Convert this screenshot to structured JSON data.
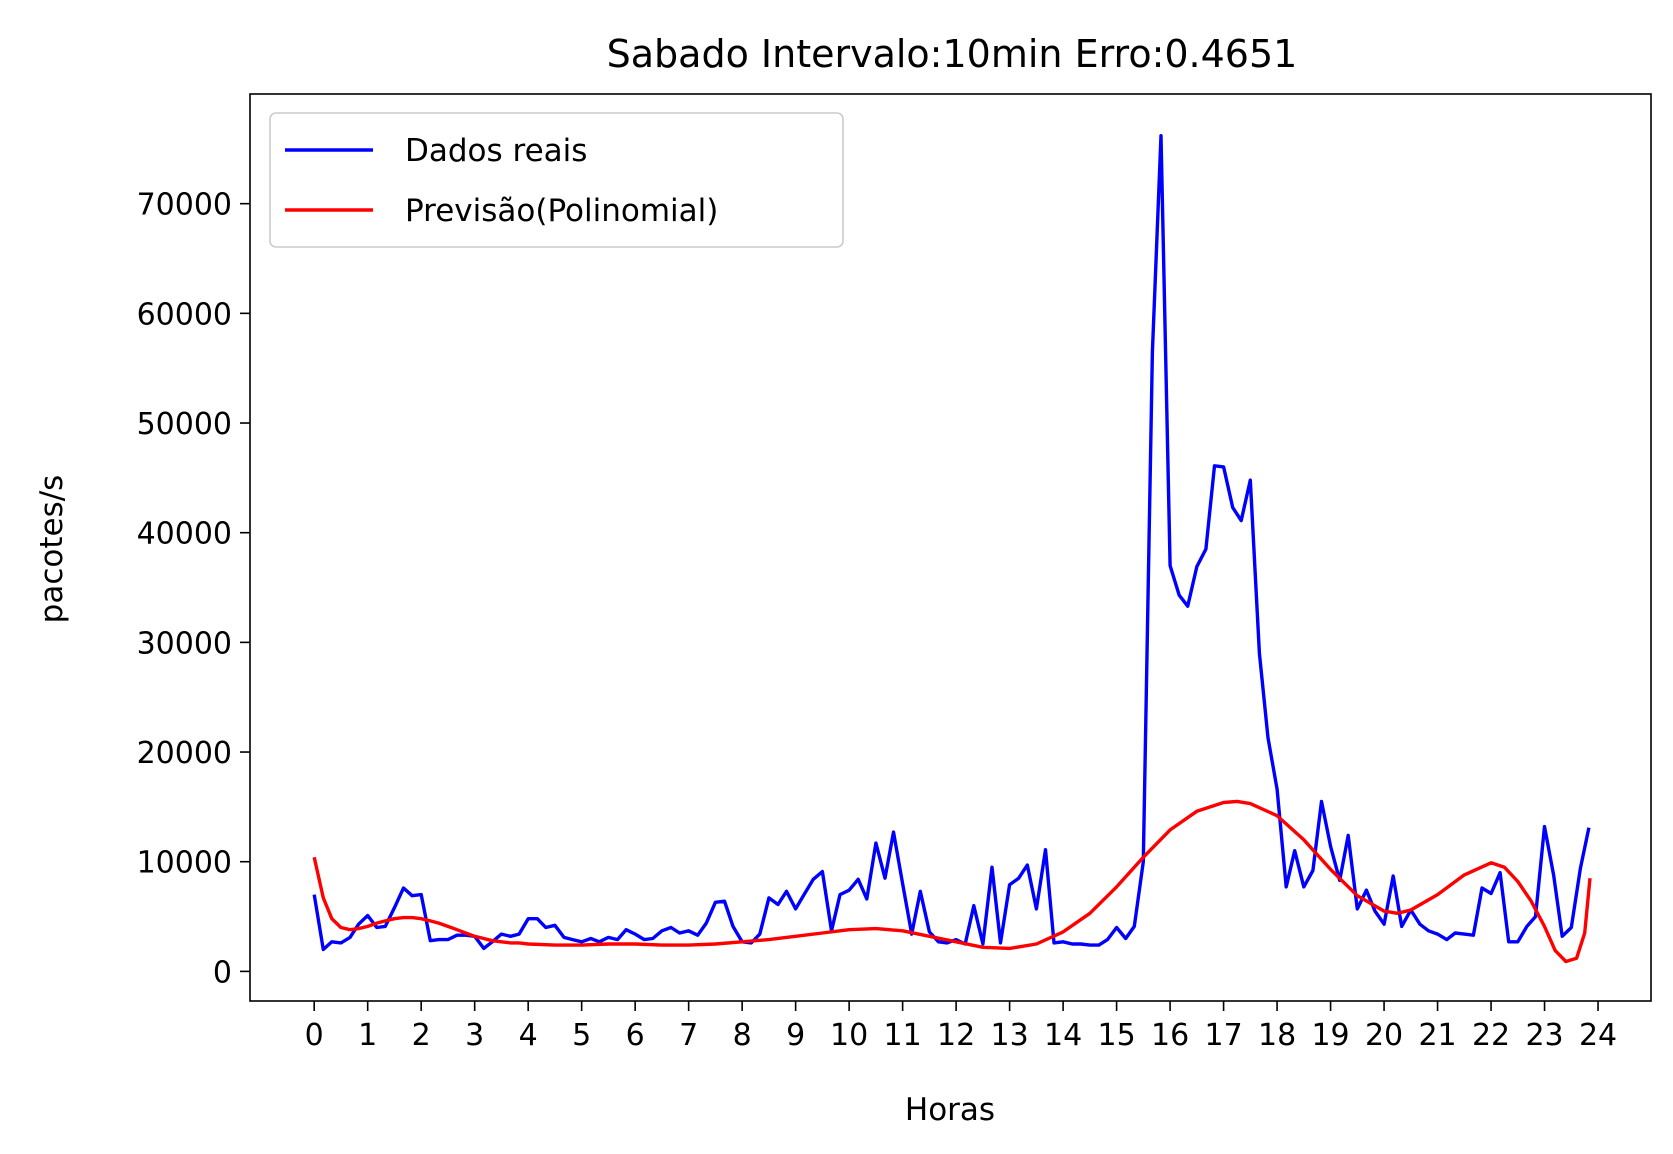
{
  "chart_data": {
    "type": "line",
    "title": "Sabado Intervalo:10min Erro:0.4651",
    "xlabel": "Horas",
    "ylabel": "pacotes/s",
    "xlim": [
      -1.2,
      24.99
    ],
    "ylim": [
      -2700,
      80000
    ],
    "xticks": [
      0,
      1,
      2,
      3,
      4,
      5,
      6,
      7,
      8,
      9,
      10,
      11,
      12,
      13,
      14,
      15,
      16,
      17,
      18,
      19,
      20,
      21,
      22,
      23,
      24
    ],
    "yticks": [
      0,
      10000,
      20000,
      30000,
      40000,
      50000,
      60000,
      70000
    ],
    "grid": false,
    "legend_position": "top-left",
    "colors": {
      "real": "#0000ff",
      "prediction": "#ff0000"
    },
    "series": [
      {
        "name": "Dados reais",
        "color": "#0000ff",
        "points": [
          [
            0.0,
            7000
          ],
          [
            0.17,
            2000
          ],
          [
            0.33,
            2700
          ],
          [
            0.5,
            2600
          ],
          [
            0.67,
            3100
          ],
          [
            0.83,
            4300
          ],
          [
            1.0,
            5100
          ],
          [
            1.17,
            4000
          ],
          [
            1.33,
            4100
          ],
          [
            1.5,
            5800
          ],
          [
            1.67,
            7600
          ],
          [
            1.83,
            6900
          ],
          [
            2.0,
            7000
          ],
          [
            2.17,
            2800
          ],
          [
            2.33,
            2900
          ],
          [
            2.5,
            2900
          ],
          [
            2.67,
            3300
          ],
          [
            2.83,
            3300
          ],
          [
            3.0,
            3200
          ],
          [
            3.17,
            2100
          ],
          [
            3.33,
            2700
          ],
          [
            3.5,
            3400
          ],
          [
            3.67,
            3200
          ],
          [
            3.83,
            3400
          ],
          [
            4.0,
            4800
          ],
          [
            4.17,
            4800
          ],
          [
            4.33,
            4000
          ],
          [
            4.5,
            4200
          ],
          [
            4.67,
            3100
          ],
          [
            4.83,
            2900
          ],
          [
            5.0,
            2700
          ],
          [
            5.17,
            3000
          ],
          [
            5.33,
            2700
          ],
          [
            5.5,
            3100
          ],
          [
            5.67,
            2900
          ],
          [
            5.83,
            3800
          ],
          [
            6.0,
            3400
          ],
          [
            6.17,
            2900
          ],
          [
            6.33,
            3000
          ],
          [
            6.5,
            3700
          ],
          [
            6.67,
            4000
          ],
          [
            6.83,
            3500
          ],
          [
            7.0,
            3700
          ],
          [
            7.17,
            3300
          ],
          [
            7.33,
            4400
          ],
          [
            7.5,
            6300
          ],
          [
            7.67,
            6400
          ],
          [
            7.83,
            4100
          ],
          [
            8.0,
            2700
          ],
          [
            8.17,
            2600
          ],
          [
            8.33,
            3400
          ],
          [
            8.5,
            6700
          ],
          [
            8.67,
            6100
          ],
          [
            8.83,
            7300
          ],
          [
            9.0,
            5700
          ],
          [
            9.17,
            7100
          ],
          [
            9.33,
            8400
          ],
          [
            9.5,
            9100
          ],
          [
            9.67,
            3700
          ],
          [
            9.83,
            7000
          ],
          [
            10.0,
            7400
          ],
          [
            10.17,
            8400
          ],
          [
            10.33,
            6600
          ],
          [
            10.5,
            11700
          ],
          [
            10.67,
            8500
          ],
          [
            10.83,
            12700
          ],
          [
            11.0,
            8000
          ],
          [
            11.17,
            3400
          ],
          [
            11.33,
            7300
          ],
          [
            11.5,
            3600
          ],
          [
            11.67,
            2700
          ],
          [
            11.83,
            2600
          ],
          [
            12.0,
            2900
          ],
          [
            12.17,
            2500
          ],
          [
            12.33,
            6000
          ],
          [
            12.5,
            2500
          ],
          [
            12.67,
            9500
          ],
          [
            12.83,
            2600
          ],
          [
            13.0,
            7900
          ],
          [
            13.17,
            8500
          ],
          [
            13.33,
            9700
          ],
          [
            13.5,
            5700
          ],
          [
            13.67,
            11100
          ],
          [
            13.83,
            2600
          ],
          [
            14.0,
            2700
          ],
          [
            14.17,
            2500
          ],
          [
            14.33,
            2500
          ],
          [
            14.5,
            2400
          ],
          [
            14.67,
            2400
          ],
          [
            14.83,
            2900
          ],
          [
            15.0,
            4000
          ],
          [
            15.17,
            3000
          ],
          [
            15.33,
            4100
          ],
          [
            15.5,
            10000
          ],
          [
            15.67,
            56500
          ],
          [
            15.83,
            76200
          ],
          [
            16.0,
            37000
          ],
          [
            16.17,
            34300
          ],
          [
            16.33,
            33300
          ],
          [
            16.5,
            36900
          ],
          [
            16.67,
            38500
          ],
          [
            16.83,
            46100
          ],
          [
            17.0,
            46000
          ],
          [
            17.17,
            42300
          ],
          [
            17.33,
            41100
          ],
          [
            17.5,
            44800
          ],
          [
            17.67,
            29000
          ],
          [
            17.83,
            21300
          ],
          [
            18.0,
            16600
          ],
          [
            18.17,
            7700
          ],
          [
            18.33,
            11000
          ],
          [
            18.5,
            7700
          ],
          [
            18.67,
            9200
          ],
          [
            18.83,
            15500
          ],
          [
            19.0,
            11400
          ],
          [
            19.17,
            8300
          ],
          [
            19.33,
            12400
          ],
          [
            19.5,
            5700
          ],
          [
            19.67,
            7400
          ],
          [
            19.83,
            5500
          ],
          [
            20.0,
            4300
          ],
          [
            20.17,
            8700
          ],
          [
            20.33,
            4100
          ],
          [
            20.5,
            5600
          ],
          [
            20.67,
            4300
          ],
          [
            20.83,
            3700
          ],
          [
            21.0,
            3400
          ],
          [
            21.17,
            2900
          ],
          [
            21.33,
            3500
          ],
          [
            21.5,
            3400
          ],
          [
            21.67,
            3300
          ],
          [
            21.83,
            7600
          ],
          [
            22.0,
            7100
          ],
          [
            22.17,
            9000
          ],
          [
            22.33,
            2700
          ],
          [
            22.5,
            2700
          ],
          [
            22.67,
            4100
          ],
          [
            22.83,
            5000
          ],
          [
            23.0,
            13200
          ],
          [
            23.17,
            8800
          ],
          [
            23.33,
            3200
          ],
          [
            23.5,
            4000
          ],
          [
            23.67,
            9400
          ],
          [
            23.83,
            13100
          ]
        ]
      },
      {
        "name": "Previsão(Polinomial)",
        "color": "#ff0000",
        "points": [
          [
            0.0,
            10400
          ],
          [
            0.17,
            6700
          ],
          [
            0.33,
            4800
          ],
          [
            0.5,
            4000
          ],
          [
            0.67,
            3800
          ],
          [
            0.83,
            3900
          ],
          [
            1.0,
            4100
          ],
          [
            1.17,
            4400
          ],
          [
            1.33,
            4600
          ],
          [
            1.5,
            4800
          ],
          [
            1.67,
            4900
          ],
          [
            1.83,
            4900
          ],
          [
            2.0,
            4800
          ],
          [
            2.17,
            4600
          ],
          [
            2.33,
            4400
          ],
          [
            2.5,
            4100
          ],
          [
            2.67,
            3800
          ],
          [
            2.83,
            3500
          ],
          [
            3.0,
            3200
          ],
          [
            3.17,
            3000
          ],
          [
            3.33,
            2800
          ],
          [
            3.5,
            2700
          ],
          [
            3.67,
            2600
          ],
          [
            3.83,
            2600
          ],
          [
            4.0,
            2500
          ],
          [
            4.5,
            2400
          ],
          [
            5.0,
            2400
          ],
          [
            5.5,
            2500
          ],
          [
            6.0,
            2500
          ],
          [
            6.5,
            2400
          ],
          [
            7.0,
            2400
          ],
          [
            7.5,
            2500
          ],
          [
            8.0,
            2700
          ],
          [
            8.5,
            2900
          ],
          [
            9.0,
            3200
          ],
          [
            9.5,
            3500
          ],
          [
            10.0,
            3800
          ],
          [
            10.5,
            3900
          ],
          [
            11.0,
            3700
          ],
          [
            11.5,
            3200
          ],
          [
            12.0,
            2700
          ],
          [
            12.5,
            2200
          ],
          [
            13.0,
            2100
          ],
          [
            13.5,
            2500
          ],
          [
            14.0,
            3600
          ],
          [
            14.5,
            5300
          ],
          [
            15.0,
            7700
          ],
          [
            15.5,
            10400
          ],
          [
            16.0,
            12900
          ],
          [
            16.5,
            14600
          ],
          [
            17.0,
            15400
          ],
          [
            17.25,
            15500
          ],
          [
            17.5,
            15300
          ],
          [
            18.0,
            14200
          ],
          [
            18.5,
            12000
          ],
          [
            19.0,
            9300
          ],
          [
            19.5,
            6900
          ],
          [
            20.0,
            5500
          ],
          [
            20.25,
            5300
          ],
          [
            20.5,
            5600
          ],
          [
            21.0,
            7000
          ],
          [
            21.5,
            8800
          ],
          [
            22.0,
            9900
          ],
          [
            22.25,
            9500
          ],
          [
            22.5,
            8200
          ],
          [
            22.75,
            6400
          ],
          [
            23.0,
            4100
          ],
          [
            23.2,
            1900
          ],
          [
            23.4,
            900
          ],
          [
            23.6,
            1200
          ],
          [
            23.75,
            3500
          ],
          [
            23.85,
            8500
          ]
        ]
      }
    ]
  }
}
